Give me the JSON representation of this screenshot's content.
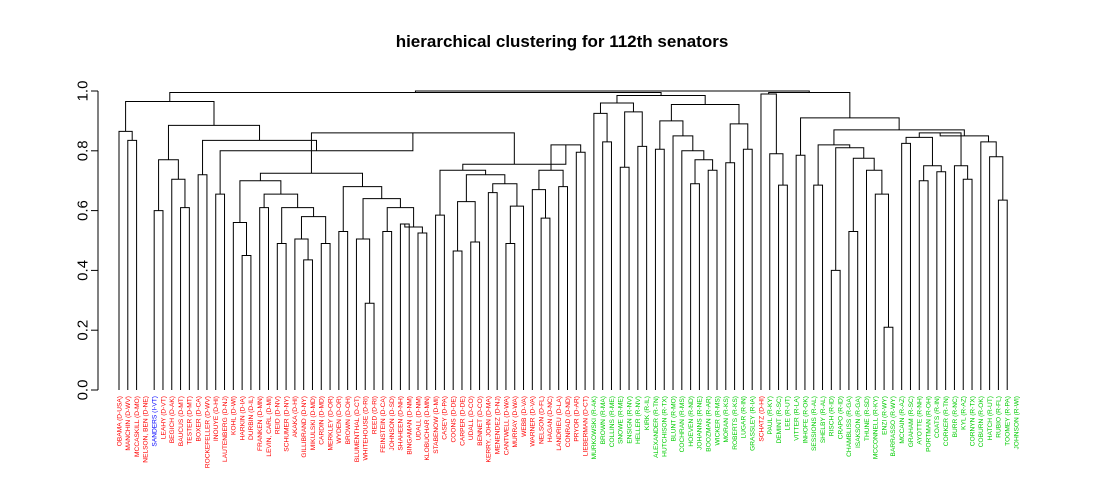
{
  "chart_data": {
    "type": "dendrogram",
    "title": "hierarchical clustering for 112th senators",
    "xlabel": "",
    "ylabel": "",
    "ylim": [
      0,
      1.0
    ],
    "yticks": [
      0.0,
      0.2,
      0.4,
      0.6,
      0.8,
      1.0
    ],
    "ytick_labels": [
      "0.0",
      "0.2",
      "0.4",
      "0.6",
      "0.8",
      "1.0"
    ],
    "colors": {
      "D": "#ff0000",
      "I": "#0000ff",
      "R": "#00cc00",
      "line": "#000000"
    },
    "leaves": [
      {
        "label": "OBAMA (D-USA)",
        "party": "D"
      },
      {
        "label": "MANCHIN (D-WV)",
        "party": "D"
      },
      {
        "label": "MCCASKILL (D-MO)",
        "party": "D"
      },
      {
        "label": "NELSON, BEN (D-NE)",
        "party": "D"
      },
      {
        "label": "SANDERS (I-VT)",
        "party": "I"
      },
      {
        "label": "LEAHY (D-VT)",
        "party": "D"
      },
      {
        "label": "BEGICH (D-AK)",
        "party": "D"
      },
      {
        "label": "BAUCUS (D-MT)",
        "party": "D"
      },
      {
        "label": "TESTER (D-MT)",
        "party": "D"
      },
      {
        "label": "BOXER (D-CA)",
        "party": "D"
      },
      {
        "label": "ROCKEFELLER (D-WV)",
        "party": "D"
      },
      {
        "label": "INOUYE (D-HI)",
        "party": "D"
      },
      {
        "label": "LAUTENBERG (D-NJ)",
        "party": "D"
      },
      {
        "label": "KOHL (D-WI)",
        "party": "D"
      },
      {
        "label": "HARKIN (D-IA)",
        "party": "D"
      },
      {
        "label": "DURBIN (D-IL)",
        "party": "D"
      },
      {
        "label": "FRANKEN (D-MN)",
        "party": "D"
      },
      {
        "label": "LEVIN, CARL (D-MI)",
        "party": "D"
      },
      {
        "label": "REID (D-NV)",
        "party": "D"
      },
      {
        "label": "SCHUMER (D-NY)",
        "party": "D"
      },
      {
        "label": "AKAKA (D-HI)",
        "party": "D"
      },
      {
        "label": "GILLIBRAND (D-NY)",
        "party": "D"
      },
      {
        "label": "MIKULSKI (D-MD)",
        "party": "D"
      },
      {
        "label": "CARDIN (D-MD)",
        "party": "D"
      },
      {
        "label": "MERKLEY (D-OR)",
        "party": "D"
      },
      {
        "label": "WYDEN (D-OR)",
        "party": "D"
      },
      {
        "label": "BROWN (D-OH)",
        "party": "D"
      },
      {
        "label": "BLUMENTHAL (D-CT)",
        "party": "D"
      },
      {
        "label": "WHITEHOUSE (D-RI)",
        "party": "D"
      },
      {
        "label": "REED (D-RI)",
        "party": "D"
      },
      {
        "label": "FEINSTEIN (D-CA)",
        "party": "D"
      },
      {
        "label": "JOHNSON (D-SD)",
        "party": "D"
      },
      {
        "label": "SHAHEEN (D-NH)",
        "party": "D"
      },
      {
        "label": "BINGAMAN (D-NM)",
        "party": "D"
      },
      {
        "label": "UDALL (D-NM)",
        "party": "D"
      },
      {
        "label": "KLOBUCHAR (D-MN)",
        "party": "D"
      },
      {
        "label": "STABENOW (D-MI)",
        "party": "D"
      },
      {
        "label": "CASEY (D-PA)",
        "party": "D"
      },
      {
        "label": "COONS (D-DE)",
        "party": "D"
      },
      {
        "label": "CARPER (D-DE)",
        "party": "D"
      },
      {
        "label": "UDALL (D-CO)",
        "party": "D"
      },
      {
        "label": "BENNET (D-CO)",
        "party": "D"
      },
      {
        "label": "KERRY, JOHN (D-MA)",
        "party": "D"
      },
      {
        "label": "MENENDEZ (D-NJ)",
        "party": "D"
      },
      {
        "label": "CANTWELL (D-WA)",
        "party": "D"
      },
      {
        "label": "MURRAY (D-WA)",
        "party": "D"
      },
      {
        "label": "WEBB (D-VA)",
        "party": "D"
      },
      {
        "label": "WARNER (D-VA)",
        "party": "D"
      },
      {
        "label": "NELSON (D-FL)",
        "party": "D"
      },
      {
        "label": "HAGAN (D-NC)",
        "party": "D"
      },
      {
        "label": "LANDRIEU (D-LA)",
        "party": "D"
      },
      {
        "label": "CONRAD (D-ND)",
        "party": "D"
      },
      {
        "label": "PRYOR (D-AR)",
        "party": "D"
      },
      {
        "label": "LIEBERMAN (D-CT)",
        "party": "D"
      },
      {
        "label": "MURKOWSKI (R-AK)",
        "party": "R"
      },
      {
        "label": "BROWN (R-MA)",
        "party": "R"
      },
      {
        "label": "COLLINS (R-ME)",
        "party": "R"
      },
      {
        "label": "SNOWE (R-ME)",
        "party": "R"
      },
      {
        "label": "ENSIGN (R-NV)",
        "party": "R"
      },
      {
        "label": "HELLER (R-NV)",
        "party": "R"
      },
      {
        "label": "KIRK (R-IL)",
        "party": "R"
      },
      {
        "label": "ALEXANDER (R-TN)",
        "party": "R"
      },
      {
        "label": "HUTCHISON (R-TX)",
        "party": "R"
      },
      {
        "label": "BLUNT (R-MO)",
        "party": "R"
      },
      {
        "label": "COCHRAN (R-MS)",
        "party": "R"
      },
      {
        "label": "HOEVEN (R-ND)",
        "party": "R"
      },
      {
        "label": "JOHANNS (R-NE)",
        "party": "R"
      },
      {
        "label": "BOOZMAN (R-AR)",
        "party": "R"
      },
      {
        "label": "WICKER (R-MS)",
        "party": "R"
      },
      {
        "label": "MORAN (R-KS)",
        "party": "R"
      },
      {
        "label": "ROBERTS (R-KS)",
        "party": "R"
      },
      {
        "label": "LUGAR (R-IN)",
        "party": "R"
      },
      {
        "label": "GRASSLEY (R-IA)",
        "party": "R"
      },
      {
        "label": "SCHATZ (D-HI)",
        "party": "D"
      },
      {
        "label": "PAUL (R-KY)",
        "party": "R"
      },
      {
        "label": "DEMINT (R-SC)",
        "party": "R"
      },
      {
        "label": "LEE (R-UT)",
        "party": "R"
      },
      {
        "label": "VITTER (R-LA)",
        "party": "R"
      },
      {
        "label": "INHOFE (R-OK)",
        "party": "R"
      },
      {
        "label": "SESSIONS (R-AL)",
        "party": "R"
      },
      {
        "label": "SHELBY (R-AL)",
        "party": "R"
      },
      {
        "label": "RISCH (R-ID)",
        "party": "R"
      },
      {
        "label": "CRAPO (R-ID)",
        "party": "R"
      },
      {
        "label": "CHAMBLISS (R-GA)",
        "party": "R"
      },
      {
        "label": "ISAKSON (R-GA)",
        "party": "R"
      },
      {
        "label": "THUNE (R-SD)",
        "party": "R"
      },
      {
        "label": "MCCONNELL (R-KY)",
        "party": "R"
      },
      {
        "label": "ENZI (R-WY)",
        "party": "R"
      },
      {
        "label": "BARRASSO (R-WY)",
        "party": "R"
      },
      {
        "label": "MCCAIN (R-AZ)",
        "party": "R"
      },
      {
        "label": "GRAHAM (R-SC)",
        "party": "R"
      },
      {
        "label": "AYOTTE (R-NH)",
        "party": "R"
      },
      {
        "label": "PORTMAN (R-OH)",
        "party": "R"
      },
      {
        "label": "COATS (R-IN)",
        "party": "R"
      },
      {
        "label": "CORKER (R-TN)",
        "party": "R"
      },
      {
        "label": "BURR (R-NC)",
        "party": "R"
      },
      {
        "label": "KYL (R-AZ)",
        "party": "R"
      },
      {
        "label": "CORNYN (R-TX)",
        "party": "R"
      },
      {
        "label": "COBURN (R-OK)",
        "party": "R"
      },
      {
        "label": "HATCH (R-UT)",
        "party": "R"
      },
      {
        "label": "RUBIO (R-FL)",
        "party": "R"
      },
      {
        "label": "TOOMEY (R-PA)",
        "party": "R"
      },
      {
        "label": "JOHNSON (R-WI)",
        "party": "R"
      }
    ],
    "merges": [
      {
        "a": 1,
        "b": 2,
        "h": 0.835
      },
      {
        "a": 0,
        "b": "n0",
        "h": 0.865
      },
      {
        "a": 4,
        "b": 5,
        "h": 0.6
      },
      {
        "a": 7,
        "b": 8,
        "h": 0.61
      },
      {
        "a": 6,
        "b": "n3",
        "h": 0.705
      },
      {
        "a": "n2",
        "b": "n4",
        "h": 0.77
      },
      {
        "a": 9,
        "b": 10,
        "h": 0.72
      },
      {
        "a": 11,
        "b": 12,
        "h": 0.655
      },
      {
        "a": 14,
        "b": 15,
        "h": 0.45
      },
      {
        "a": 13,
        "b": "n8",
        "h": 0.56
      },
      {
        "a": 16,
        "b": 17,
        "h": 0.61
      },
      {
        "a": 18,
        "b": 19,
        "h": 0.49
      },
      {
        "a": 21,
        "b": 22,
        "h": 0.435
      },
      {
        "a": 20,
        "b": "n12",
        "h": 0.505
      },
      {
        "a": 23,
        "b": 24,
        "h": 0.49
      },
      {
        "a": "n13",
        "b": "n14",
        "h": 0.58
      },
      {
        "a": "n11",
        "b": "n15",
        "h": 0.61
      },
      {
        "a": "n10",
        "b": "n16",
        "h": 0.655
      },
      {
        "a": "n9",
        "b": "n17",
        "h": 0.7
      },
      {
        "a": 25,
        "b": 26,
        "h": 0.53
      },
      {
        "a": 28,
        "b": 29,
        "h": 0.29
      },
      {
        "a": 27,
        "b": "n20",
        "h": 0.505
      },
      {
        "a": 30,
        "b": 31,
        "h": 0.53
      },
      {
        "a": 32,
        "b": 33,
        "h": 0.555
      },
      {
        "a": 34,
        "b": 35,
        "h": 0.525
      },
      {
        "a": "n23",
        "b": "n24",
        "h": 0.545
      },
      {
        "a": "n22",
        "b": "n25",
        "h": 0.61
      },
      {
        "a": "n21",
        "b": "n26",
        "h": 0.64
      },
      {
        "a": "n19",
        "b": "n27",
        "h": 0.68
      },
      {
        "a": "n18",
        "b": "n28",
        "h": 0.725
      },
      {
        "a": 36,
        "b": 37,
        "h": 0.585
      },
      {
        "a": 38,
        "b": 39,
        "h": 0.465
      },
      {
        "a": 40,
        "b": 41,
        "h": 0.495
      },
      {
        "a": "n31",
        "b": "n32",
        "h": 0.63
      },
      {
        "a": 42,
        "b": 43,
        "h": 0.66
      },
      {
        "a": 44,
        "b": 45,
        "h": 0.49
      },
      {
        "a": 46,
        "b": "n35",
        "h": 0.615
      },
      {
        "a": "n34",
        "b": "n36",
        "h": 0.69
      },
      {
        "a": "n33",
        "b": "n37",
        "h": 0.72
      },
      {
        "a": "n30",
        "b": "n38",
        "h": 0.735
      },
      {
        "a": 48,
        "b": 49,
        "h": 0.575
      },
      {
        "a": 47,
        "b": "n40",
        "h": 0.67
      },
      {
        "a": 50,
        "b": 51,
        "h": 0.68
      },
      {
        "a": "n41",
        "b": "n42",
        "h": 0.735
      },
      {
        "a": 52,
        "b": 53,
        "h": 0.795
      },
      {
        "a": "n43",
        "b": "n44",
        "h": 0.82
      },
      {
        "a": "n39",
        "b": "n45",
        "h": 0.755
      },
      {
        "a": "n29",
        "b": "n46",
        "h": 0.86
      },
      {
        "a": "n7",
        "b": "n47",
        "h": 0.8
      },
      {
        "a": "n6",
        "b": "n48",
        "h": 0.835
      },
      {
        "a": "n5",
        "b": "n49",
        "h": 0.885
      },
      {
        "a": "n1",
        "b": "n50",
        "h": 0.965
      },
      {
        "a": 55,
        "b": 56,
        "h": 0.83
      },
      {
        "a": 54,
        "b": "n52",
        "h": 0.925
      },
      {
        "a": 57,
        "b": 58,
        "h": 0.745
      },
      {
        "a": 59,
        "b": 60,
        "h": 0.815
      },
      {
        "a": "n54",
        "b": "n55",
        "h": 0.93
      },
      {
        "a": 65,
        "b": 66,
        "h": 0.69
      },
      {
        "a": 67,
        "b": 68,
        "h": 0.735
      },
      {
        "a": "n57",
        "b": "n58",
        "h": 0.77
      },
      {
        "a": 64,
        "b": "n59",
        "h": 0.8
      },
      {
        "a": 63,
        "b": "n60",
        "h": 0.85
      },
      {
        "a": 61,
        "b": 62,
        "h": 0.805
      },
      {
        "a": "n61",
        "b": "n62",
        "h": 0.9
      },
      {
        "a": 69,
        "b": 70,
        "h": 0.76
      },
      {
        "a": 71,
        "b": 72,
        "h": 0.805
      },
      {
        "a": "n64",
        "b": "n65",
        "h": 0.89
      },
      {
        "a": "n63",
        "b": "n66",
        "h": 0.955
      },
      {
        "a": "n53",
        "b": "n56",
        "h": 0.96
      },
      {
        "a": "n68",
        "b": "n67",
        "h": 0.985
      },
      {
        "a": "n51",
        "b": "n69",
        "h": 0.995
      },
      {
        "a": 75,
        "b": 76,
        "h": 0.685
      },
      {
        "a": 74,
        "b": "n71",
        "h": 0.79
      },
      {
        "a": 73,
        "b": "n72",
        "h": 0.99
      },
      {
        "a": 77,
        "b": 78,
        "h": 0.785
      },
      {
        "a": 79,
        "b": 80,
        "h": 0.685
      },
      {
        "a": 81,
        "b": 82,
        "h": 0.4
      },
      {
        "a": 83,
        "b": 84,
        "h": 0.53
      },
      {
        "a": 87,
        "b": 88,
        "h": 0.21
      },
      {
        "a": 86,
        "b": "n78",
        "h": 0.655
      },
      {
        "a": 85,
        "b": "n79",
        "h": 0.735
      },
      {
        "a": "n77",
        "b": "n80",
        "h": 0.775
      },
      {
        "a": "n76",
        "b": "n81",
        "h": 0.81
      },
      {
        "a": "n75",
        "b": "n82",
        "h": 0.82
      },
      {
        "a": 91,
        "b": 92,
        "h": 0.7
      },
      {
        "a": 93,
        "b": 94,
        "h": 0.73
      },
      {
        "a": "n84",
        "b": "n85",
        "h": 0.75
      },
      {
        "a": 89,
        "b": 90,
        "h": 0.825
      },
      {
        "a": "n87",
        "b": "n86",
        "h": 0.845
      },
      {
        "a": 96,
        "b": 97,
        "h": 0.705
      },
      {
        "a": 95,
        "b": "n89",
        "h": 0.75
      },
      {
        "a": "n88",
        "b": "n90",
        "h": 0.86
      },
      {
        "a": 100,
        "b": 101,
        "h": 0.635
      },
      {
        "a": 99,
        "b": "n92",
        "h": 0.78
      },
      {
        "a": 98,
        "b": "n93",
        "h": 0.83
      },
      {
        "a": "n94",
        "b": "n91",
        "h": 0.85
      },
      {
        "a": "n95",
        "b": "n83",
        "h": 0.87
      },
      {
        "a": "n96",
        "b": "n74",
        "h": 0.91
      },
      {
        "a": "n73",
        "b": "n97",
        "h": 0.995
      },
      {
        "a": "n70",
        "b": "n98",
        "h": 1.0
      }
    ]
  }
}
